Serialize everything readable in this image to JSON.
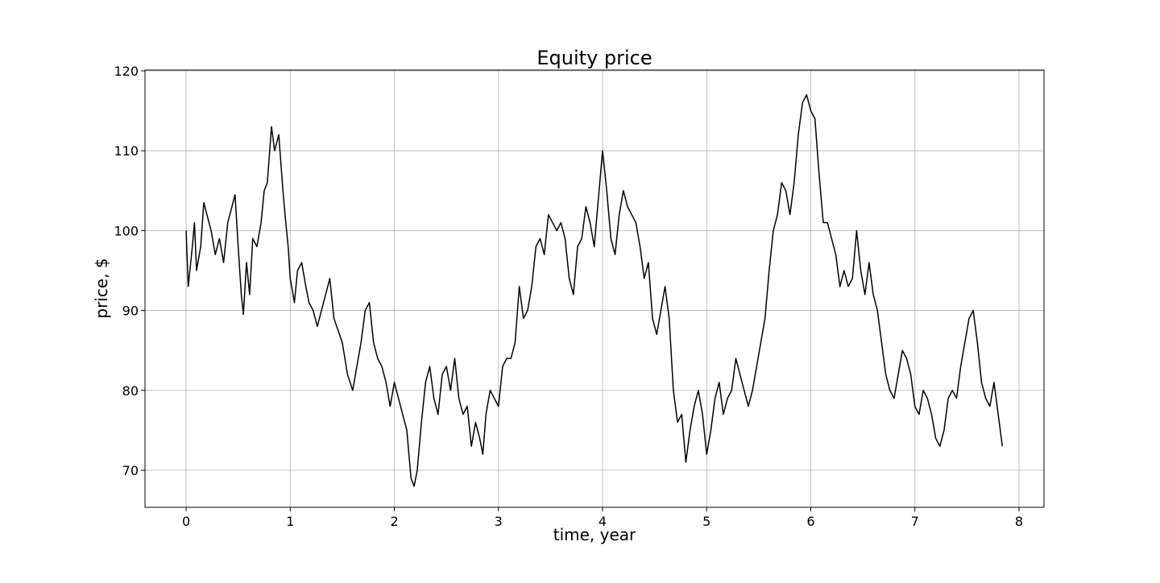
{
  "chart_data": {
    "type": "line",
    "title": "Equity price",
    "xlabel": "time, year",
    "ylabel": "price, $",
    "x": [
      0,
      0.02,
      0.06,
      0.08,
      0.1,
      0.14,
      0.17,
      0.2,
      0.24,
      0.28,
      0.32,
      0.36,
      0.4,
      0.44,
      0.47,
      0.5,
      0.53,
      0.55,
      0.58,
      0.61,
      0.64,
      0.68,
      0.72,
      0.75,
      0.78,
      0.82,
      0.85,
      0.89,
      0.93,
      0.95,
      0.98,
      1.0,
      1.04,
      1.07,
      1.11,
      1.15,
      1.18,
      1.22,
      1.26,
      1.3,
      1.34,
      1.38,
      1.42,
      1.46,
      1.5,
      1.55,
      1.6,
      1.64,
      1.68,
      1.72,
      1.76,
      1.8,
      1.84,
      1.88,
      1.92,
      1.96,
      2.0,
      2.04,
      2.08,
      2.12,
      2.16,
      2.19,
      2.22,
      2.26,
      2.3,
      2.34,
      2.38,
      2.42,
      2.46,
      2.5,
      2.54,
      2.58,
      2.62,
      2.66,
      2.7,
      2.74,
      2.78,
      2.82,
      2.85,
      2.88,
      2.92,
      2.96,
      3.0,
      3.04,
      3.08,
      3.12,
      3.16,
      3.2,
      3.24,
      3.28,
      3.32,
      3.36,
      3.4,
      3.44,
      3.48,
      3.52,
      3.56,
      3.6,
      3.64,
      3.68,
      3.72,
      3.76,
      3.8,
      3.84,
      3.88,
      3.92,
      3.96,
      4.0,
      4.04,
      4.08,
      4.12,
      4.16,
      4.2,
      4.24,
      4.28,
      4.32,
      4.36,
      4.4,
      4.44,
      4.48,
      4.52,
      4.56,
      4.6,
      4.64,
      4.68,
      4.72,
      4.76,
      4.8,
      4.84,
      4.88,
      4.92,
      4.96,
      5.0,
      5.04,
      5.08,
      5.12,
      5.16,
      5.2,
      5.24,
      5.28,
      5.32,
      5.36,
      5.4,
      5.44,
      5.48,
      5.52,
      5.56,
      5.6,
      5.64,
      5.68,
      5.72,
      5.76,
      5.8,
      5.84,
      5.88,
      5.92,
      5.96,
      6.0,
      6.04,
      6.08,
      6.12,
      6.16,
      6.2,
      6.24,
      6.28,
      6.32,
      6.36,
      6.4,
      6.44,
      6.48,
      6.52,
      6.56,
      6.6,
      6.64,
      6.68,
      6.72,
      6.76,
      6.8,
      6.84,
      6.88,
      6.92,
      6.96,
      7.0,
      7.04,
      7.08,
      7.12,
      7.16,
      7.2,
      7.24,
      7.28,
      7.32,
      7.36,
      7.4,
      7.44,
      7.48,
      7.52,
      7.56,
      7.6,
      7.64,
      7.68,
      7.72,
      7.76,
      7.8,
      7.84
    ],
    "values": [
      100,
      93,
      98,
      101,
      95,
      98,
      103.5,
      102,
      100,
      97,
      99,
      96,
      101,
      103,
      104.5,
      98,
      92,
      89.5,
      96,
      92,
      99,
      98,
      101,
      105,
      106,
      113,
      110,
      112,
      105,
      102,
      98,
      94,
      91,
      95,
      96,
      93,
      91,
      90,
      88,
      90,
      92,
      94,
      89,
      87.5,
      86,
      82,
      80,
      83,
      86,
      90,
      91,
      86,
      84,
      83,
      81,
      78,
      81,
      79,
      77,
      75,
      69,
      68,
      70,
      76,
      81,
      83,
      79,
      77,
      82,
      83,
      80,
      84,
      79,
      77,
      78,
      73,
      76,
      74,
      72,
      77,
      80,
      79,
      78,
      83,
      84,
      84,
      86,
      93,
      89,
      90,
      93,
      98,
      99,
      97,
      102,
      101,
      100,
      101,
      99,
      94,
      92,
      98,
      99,
      103,
      101,
      98,
      104,
      110,
      105,
      99,
      97,
      102,
      105,
      103,
      102,
      101,
      98,
      94,
      96,
      89,
      87,
      90,
      93,
      89,
      80,
      76,
      77,
      71,
      75,
      78,
      80,
      77,
      72,
      75,
      79,
      81,
      77,
      79,
      80,
      84,
      82,
      80,
      78,
      80,
      83,
      86,
      89,
      95,
      100,
      102,
      106,
      105,
      102,
      106,
      112,
      116,
      117,
      115,
      114,
      107,
      101,
      101,
      99,
      97,
      93,
      95,
      93,
      94,
      100,
      95,
      92,
      96,
      92,
      90,
      86,
      82,
      80,
      79,
      82,
      85,
      84,
      82,
      78,
      77,
      80,
      79,
      77,
      74,
      73,
      75,
      79,
      80,
      79,
      83,
      86,
      89,
      90,
      86,
      81,
      79,
      78,
      81,
      77,
      73
    ],
    "color": "#000000",
    "xlim": [
      -0.395,
      8.24
    ],
    "xticks": [
      0,
      1,
      2,
      3,
      4,
      5,
      6,
      7,
      8
    ],
    "ylim": [
      65.36,
      120.1
    ],
    "yticks": [
      70,
      80,
      90,
      100,
      110,
      120
    ],
    "grid": true
  }
}
